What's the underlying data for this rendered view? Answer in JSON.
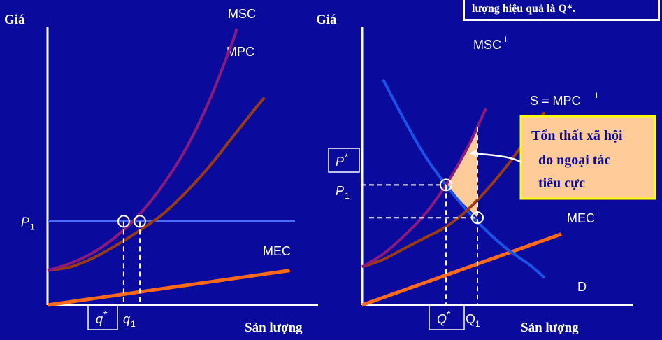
{
  "colors": {
    "background": "#0a0a9c",
    "axis": "#ffffff",
    "msc": "#8c1a7a",
    "mpc": "#9a3a10",
    "mec": "#ff6a1a",
    "price_line": "#4a6cff",
    "demand": "#1a52e8",
    "loss_area": "#ffcc99",
    "callout_bg": "#ffcc99",
    "callout_border": "#ffff00",
    "callout_text": "#0a0a9c",
    "text": "#ffffff"
  },
  "top_note": "lượng hiệu quả là Q*.",
  "chart_data": [
    {
      "type": "line",
      "ylabel": "Giá",
      "xlabel": "Sản lượng",
      "series": [
        {
          "name": "MSC",
          "points": [
            [
              0,
              0.95
            ],
            [
              1,
              1.15
            ],
            [
              2,
              1.45
            ],
            [
              3,
              1.9
            ],
            [
              4,
              2.5
            ],
            [
              5,
              3.3
            ],
            [
              6,
              4.3
            ],
            [
              7,
              5.6
            ],
            [
              8,
              7.2
            ],
            [
              8.2,
              7.6
            ]
          ]
        },
        {
          "name": "MPC",
          "points": [
            [
              0,
              0.95
            ],
            [
              1,
              1.05
            ],
            [
              2,
              1.3
            ],
            [
              3,
              1.65
            ],
            [
              4,
              2.05
            ],
            [
              5,
              2.5
            ],
            [
              6,
              3.1
            ],
            [
              7,
              3.8
            ],
            [
              8,
              4.6
            ],
            [
              9,
              5.4
            ],
            [
              9.4,
              5.7
            ]
          ]
        },
        {
          "name": "MEC",
          "points": [
            [
              0,
              0
            ],
            [
              10.5,
              0.95
            ]
          ]
        }
      ],
      "price_line": {
        "label": "P1",
        "y": 2.3
      },
      "tick_labels": {
        "q_star": "q*",
        "q1": "q1"
      },
      "q_star": 3.3,
      "q1": 4.0,
      "xlim": [
        0,
        11
      ],
      "ylim": [
        0,
        8
      ]
    },
    {
      "type": "line",
      "ylabel": "",
      "xlabel": "Sản lượng",
      "series": [
        {
          "name": "MSCI",
          "label": "MSC",
          "sup": "I",
          "points": [
            [
              0,
              1.05
            ],
            [
              1,
              1.4
            ],
            [
              2,
              1.9
            ],
            [
              3,
              2.5
            ],
            [
              4,
              3.3
            ],
            [
              5,
              4.3
            ],
            [
              5.5,
              4.9
            ],
            [
              5.9,
              5.4
            ]
          ]
        },
        {
          "name": "S = MPCI",
          "label": "S = MPC",
          "sup": "I",
          "points": [
            [
              0,
              1.05
            ],
            [
              1,
              1.25
            ],
            [
              2,
              1.55
            ],
            [
              3,
              1.85
            ],
            [
              4,
              2.15
            ],
            [
              5,
              2.6
            ],
            [
              6,
              3.2
            ],
            [
              7,
              3.9
            ],
            [
              8,
              4.7
            ],
            [
              8.7,
              5.3
            ]
          ]
        },
        {
          "name": "MECI",
          "label": "MEC",
          "sup": "I",
          "points": [
            [
              0,
              0
            ],
            [
              9.5,
              1.95
            ]
          ]
        },
        {
          "name": "D",
          "label": "D",
          "points": [
            [
              1,
              6.2
            ],
            [
              2,
              5.1
            ],
            [
              3,
              4.1
            ],
            [
              4,
              3.3
            ],
            [
              5,
              2.6
            ],
            [
              6,
              2.0
            ],
            [
              7,
              1.5
            ],
            [
              8,
              1.1
            ],
            [
              8.7,
              0.75
            ]
          ]
        }
      ],
      "price_labels": {
        "p_star": "P*",
        "p1": "P1"
      },
      "tick_labels": {
        "q_star": "Q*",
        "q1": "Q1"
      },
      "q_star": 4.0,
      "p_star": 3.3,
      "q1": 5.5,
      "p1": 2.4,
      "callout": [
        "Tổn thất xã hội",
        "do ngoại tác",
        "tiêu cực"
      ],
      "xlim": [
        0,
        11
      ],
      "ylim": [
        0,
        8
      ]
    }
  ]
}
